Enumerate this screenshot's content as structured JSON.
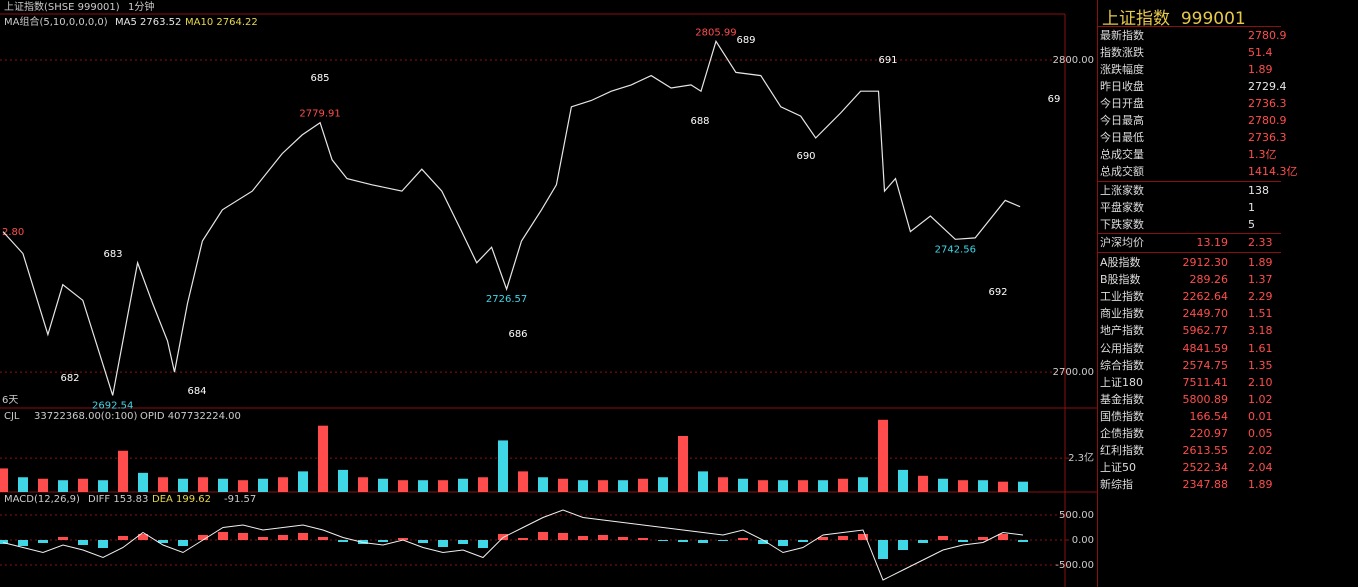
{
  "chart_data": [
    {
      "type": "line",
      "title": "上证指数(SHSE 999001)",
      "period": "1分钟",
      "ma_header": "MA组合(5,10,0,0,0,0)",
      "ma5": "MA5 2763.52",
      "ma10": "MA10 2764.22",
      "left_label": "2.80",
      "span_label": "6天",
      "color": "#e6e6e6",
      "xlim": [
        0,
        1060
      ],
      "x": [
        0,
        20,
        45,
        60,
        80,
        110,
        125,
        135,
        150,
        165,
        172,
        185,
        200,
        220,
        250,
        280,
        300,
        318,
        330,
        345,
        370,
        400,
        420,
        440,
        460,
        475,
        490,
        505,
        520,
        540,
        555,
        570,
        590,
        610,
        630,
        650,
        670,
        690,
        700,
        715,
        735,
        760,
        780,
        800,
        815,
        840,
        860,
        878,
        884,
        895,
        910,
        930,
        955,
        975,
        990,
        1005,
        1020
      ],
      "values": [
        2745,
        2738,
        2712,
        2728,
        2723,
        2692.54,
        2718,
        2735,
        2722,
        2710,
        2700,
        2722,
        2742,
        2752,
        2758,
        2770,
        2776,
        2779.91,
        2768,
        2762,
        2760,
        2758,
        2765,
        2758,
        2745,
        2735,
        2740,
        2726.57,
        2742,
        2752,
        2760,
        2785,
        2787,
        2790,
        2792,
        2795,
        2791,
        2792,
        2790,
        2805.99,
        2796,
        2795,
        2785,
        2782,
        2775,
        2783,
        2790,
        2790,
        2758,
        2762,
        2745,
        2750,
        2742.56,
        2743,
        2749,
        2755,
        2753
      ],
      "value_labels": [
        null,
        null,
        null,
        null,
        null,
        "2692.54",
        null,
        null,
        null,
        null,
        null,
        null,
        null,
        null,
        null,
        null,
        null,
        "2779.91",
        null,
        null,
        null,
        null,
        null,
        null,
        null,
        null,
        null,
        "2726.57",
        null,
        null,
        null,
        null,
        null,
        null,
        null,
        null,
        null,
        null,
        null,
        "2805.99",
        null,
        null,
        null,
        null,
        null,
        null,
        null,
        null,
        null,
        null,
        null,
        null,
        "2742.56",
        null,
        null,
        null,
        null
      ],
      "ylim": [
        2688.5,
        2814.4
      ],
      "yticks": [
        {
          "value": 2800,
          "label": "2800.00"
        },
        {
          "value": 2700,
          "label": "2700.00"
        }
      ],
      "annotations": [
        "682",
        "683",
        "684",
        "685",
        "686",
        "688",
        "689",
        "690",
        "691",
        "692",
        "69"
      ]
    },
    {
      "type": "bar",
      "title": "CJL",
      "subtitle": "33722368.00(0:100)",
      "opid": "OPID 407732224.00",
      "colors": [
        "#ff4d4d",
        "#3fd6e6"
      ],
      "values": [
        1.6,
        1.0,
        0.9,
        0.8,
        0.9,
        0.8,
        2.8,
        1.3,
        1.0,
        0.9,
        1.0,
        0.9,
        0.8,
        0.9,
        1.0,
        1.4,
        4.5,
        1.5,
        1.0,
        0.9,
        0.8,
        0.8,
        0.8,
        0.9,
        1.0,
        3.5,
        1.4,
        1.0,
        0.9,
        0.8,
        0.8,
        0.8,
        0.9,
        1.0,
        3.8,
        1.4,
        1.0,
        0.9,
        0.8,
        0.8,
        0.8,
        0.8,
        0.9,
        1.0,
        4.9,
        1.5,
        1.1,
        0.9,
        0.8,
        0.8,
        0.7,
        0.7
      ],
      "ylim": [
        0,
        5.7
      ],
      "yticks": [
        {
          "value": 2.3,
          "label": "2.3亿"
        }
      ]
    },
    {
      "type": "bar",
      "title": "MACD(12,26,9)",
      "diff_label": "DIFF 153.83",
      "dea_label": "DEA 199.62",
      "macd_label": "-91.57",
      "colors": [
        "#ff4d4d",
        "#3fd6e6"
      ],
      "line_color": "#f0f0f0",
      "values": [
        -80,
        -120,
        -60,
        60,
        -100,
        -160,
        80,
        120,
        -60,
        -120,
        100,
        160,
        140,
        60,
        100,
        140,
        60,
        -40,
        -80,
        -40,
        40,
        -60,
        -140,
        -80,
        -160,
        120,
        40,
        160,
        140,
        80,
        100,
        60,
        40,
        -20,
        -40,
        -60,
        -20,
        40,
        -80,
        -120,
        -40,
        60,
        80,
        120,
        -380,
        -200,
        -60,
        80,
        -40,
        60,
        120,
        -40
      ],
      "diff": [
        -50,
        -150,
        -250,
        -100,
        -200,
        -350,
        -150,
        150,
        -100,
        -250,
        0,
        250,
        300,
        200,
        250,
        300,
        200,
        50,
        -50,
        -100,
        0,
        -150,
        -250,
        -200,
        -350,
        50,
        250,
        450,
        600,
        450,
        400,
        350,
        300,
        250,
        200,
        150,
        100,
        200,
        0,
        -250,
        -150,
        100,
        150,
        200,
        -800,
        -600,
        -400,
        -200,
        -100,
        -50,
        150,
        100
      ],
      "ylim": [
        -940,
        960
      ],
      "yticks": [
        {
          "value": 500,
          "label": "500.00"
        },
        {
          "value": 0,
          "label": "0.00"
        },
        {
          "value": -500,
          "label": "-500.00"
        }
      ]
    }
  ],
  "side_panel": {
    "title": "上证指数",
    "code": "999001",
    "quote_rows": [
      {
        "label": "最新指数",
        "value": "2780.9",
        "color": "#ff4d4d"
      },
      {
        "label": "指数涨跌",
        "value": "51.4",
        "color": "#ff4d4d"
      },
      {
        "label": "涨跌幅度",
        "value": "1.89",
        "color": "#ff4d4d"
      },
      {
        "label": "昨日收盘",
        "value": "2729.4",
        "color": "#e6e6e6"
      },
      {
        "label": "今日开盘",
        "value": "2736.3",
        "color": "#ff4d4d"
      },
      {
        "label": "今日最高",
        "value": "2780.9",
        "color": "#ff4d4d"
      },
      {
        "label": "今日最低",
        "value": "2736.3",
        "color": "#ff4d4d"
      },
      {
        "label": "总成交量",
        "value": "1.3亿",
        "color": "#ff4d4d"
      },
      {
        "label": "总成交额",
        "value": "1414.3亿",
        "color": "#ff4d4d"
      }
    ],
    "breadth_rows": [
      {
        "label": "上涨家数",
        "value": "138"
      },
      {
        "label": "平盘家数",
        "value": "1"
      },
      {
        "label": "下跌家数",
        "value": "5"
      }
    ],
    "avg_row": {
      "label": "沪深均价",
      "value": "13.19",
      "change": "2.33"
    },
    "index_rows": [
      {
        "label": "A股指数",
        "value": "2912.30",
        "change": "1.89"
      },
      {
        "label": "B股指数",
        "value": "289.26",
        "change": "1.37"
      },
      {
        "label": "工业指数",
        "value": "2262.64",
        "change": "2.29"
      },
      {
        "label": "商业指数",
        "value": "2449.70",
        "change": "1.51"
      },
      {
        "label": "地产指数",
        "value": "5962.77",
        "change": "3.18"
      },
      {
        "label": "公用指数",
        "value": "4841.59",
        "change": "1.61"
      },
      {
        "label": "综合指数",
        "value": "2574.75",
        "change": "1.35"
      },
      {
        "label": "上证180",
        "value": "7511.41",
        "change": "2.10"
      },
      {
        "label": "基金指数",
        "value": "5800.89",
        "change": "1.02"
      },
      {
        "label": "国债指数",
        "value": "166.54",
        "change": "0.01"
      },
      {
        "label": "企债指数",
        "value": "220.97",
        "change": "0.05"
      },
      {
        "label": "红利指数",
        "value": "2613.55",
        "change": "2.02"
      },
      {
        "label": "上证50",
        "value": "2522.34",
        "change": "2.04"
      },
      {
        "label": "新综指",
        "value": "2347.88",
        "change": "1.89"
      }
    ]
  }
}
